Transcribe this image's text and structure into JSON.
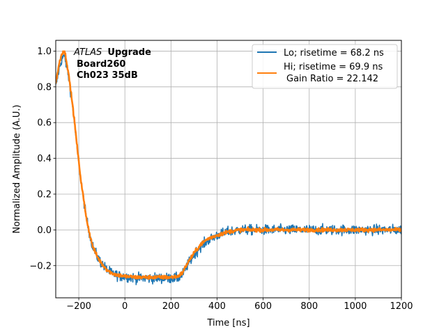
{
  "chart_data": {
    "type": "line",
    "title": "",
    "xlabel": "Time [ns]",
    "ylabel": "Normalized Amplitude (A.U.)",
    "xlim": [
      -300,
      1200
    ],
    "ylim": [
      -0.38,
      1.06
    ],
    "xticks": [
      -200,
      0,
      200,
      400,
      600,
      800,
      1000,
      1200
    ],
    "xtick_labels": [
      "−200",
      "0",
      "200",
      "400",
      "600",
      "800",
      "1000",
      "1200"
    ],
    "yticks": [
      -0.2,
      0.0,
      0.2,
      0.4,
      0.6,
      0.8,
      1.0
    ],
    "ytick_labels": [
      "−0.2",
      "0.0",
      "0.2",
      "0.4",
      "0.6",
      "0.8",
      "1.0"
    ],
    "grid": true,
    "legend_position": "top-right",
    "annotation": {
      "experiment": "ATLAS",
      "tag": "Upgrade",
      "board": "Board260",
      "channel": "Ch023 35dB"
    },
    "series": [
      {
        "name": "Lo; risetime = 68.2 ns",
        "color": "#1f77b4",
        "noise": 0.014,
        "x": [
          -300,
          -285,
          -275,
          -268,
          -260,
          -250,
          -240,
          -230,
          -220,
          -210,
          -200,
          -190,
          -180,
          -170,
          -160,
          -150,
          -140,
          -130,
          -120,
          -110,
          -100,
          -80,
          -60,
          -40,
          -20,
          0,
          50,
          100,
          150,
          200,
          230,
          250,
          270,
          300,
          330,
          360,
          400,
          450,
          500,
          600,
          700,
          800,
          900,
          1000,
          1100,
          1200
        ],
        "values": [
          0.8,
          0.9,
          0.95,
          0.97,
          0.96,
          0.9,
          0.82,
          0.72,
          0.61,
          0.49,
          0.37,
          0.27,
          0.18,
          0.09,
          0.02,
          -0.04,
          -0.09,
          -0.12,
          -0.15,
          -0.17,
          -0.19,
          -0.22,
          -0.24,
          -0.25,
          -0.26,
          -0.26,
          -0.27,
          -0.27,
          -0.27,
          -0.27,
          -0.27,
          -0.25,
          -0.2,
          -0.14,
          -0.09,
          -0.06,
          -0.03,
          -0.01,
          0.0,
          0.0,
          0.0,
          0.0,
          0.0,
          0.0,
          0.0,
          0.0
        ]
      },
      {
        "name": "Hi; risetime = 69.9 ns",
        "subtitle": "Gain Ratio = 22.142",
        "color": "#ff7f0e",
        "noise": 0.005,
        "x": [
          -300,
          -285,
          -275,
          -268,
          -260,
          -250,
          -240,
          -230,
          -220,
          -210,
          -200,
          -190,
          -180,
          -170,
          -160,
          -150,
          -140,
          -130,
          -120,
          -110,
          -100,
          -80,
          -60,
          -40,
          -20,
          0,
          50,
          100,
          150,
          200,
          230,
          250,
          270,
          300,
          330,
          360,
          400,
          450,
          500,
          600,
          700,
          800,
          900,
          1000,
          1100,
          1200
        ],
        "values": [
          0.82,
          0.93,
          0.98,
          1.0,
          0.99,
          0.92,
          0.83,
          0.73,
          0.62,
          0.5,
          0.38,
          0.27,
          0.18,
          0.09,
          0.02,
          -0.04,
          -0.09,
          -0.12,
          -0.15,
          -0.17,
          -0.19,
          -0.22,
          -0.24,
          -0.25,
          -0.255,
          -0.26,
          -0.265,
          -0.265,
          -0.265,
          -0.265,
          -0.26,
          -0.24,
          -0.19,
          -0.13,
          -0.08,
          -0.05,
          -0.03,
          -0.01,
          0.0,
          0.0,
          0.0,
          0.0,
          0.0,
          0.0,
          0.0,
          0.0
        ]
      }
    ]
  }
}
